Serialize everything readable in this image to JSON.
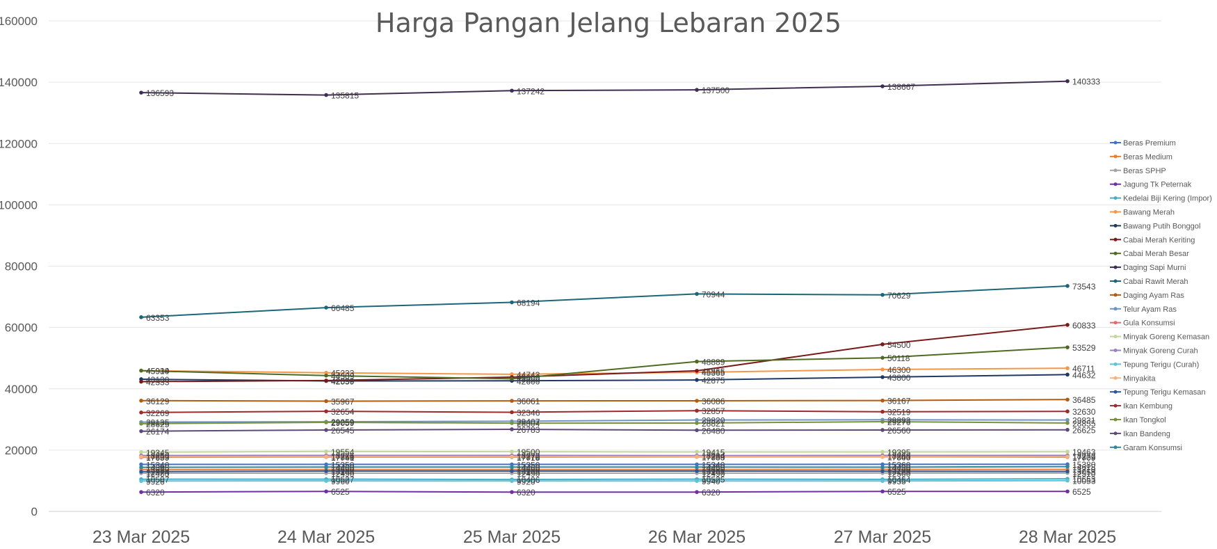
{
  "chart_data": {
    "type": "line",
    "title": "Harga Pangan Jelang Lebaran 2025",
    "xlabel": "",
    "ylabel": "",
    "categories": [
      "23 Mar 2025",
      "24 Mar 2025",
      "25 Mar 2025",
      "26 Mar 2025",
      "27 Mar 2025",
      "28 Mar 2025"
    ],
    "ylim": [
      0,
      160000
    ],
    "yticks": [
      0,
      20000,
      40000,
      60000,
      80000,
      100000,
      120000,
      140000,
      160000
    ],
    "grid": true,
    "legend_position": "right",
    "series": [
      {
        "name": "Beras Premium",
        "color": "#4472C4",
        "values": [
          15340,
          15350,
          15350,
          15340,
          15360,
          15380
        ]
      },
      {
        "name": "Beras Medium",
        "color": "#ED7D31",
        "values": [
          13680,
          13690,
          13690,
          13680,
          13700,
          13710
        ]
      },
      {
        "name": "Beras SPHP",
        "color": "#A5A5A5",
        "values": [
          12480,
          12490,
          12490,
          12490,
          12500,
          12510
        ]
      },
      {
        "name": "Jagung Tk Peternak",
        "color": "#7030A0",
        "values": [
          6320,
          6525,
          6320,
          6320,
          6525,
          6525
        ]
      },
      {
        "name": "Kedelai Biji Kering (Impor)",
        "color": "#4BACC6",
        "values": [
          10507,
          10527,
          10406,
          10525,
          10454,
          10653
        ]
      },
      {
        "name": "Bawang Merah",
        "color": "#F79646",
        "values": [
          45939,
          45233,
          44743,
          45365,
          46300,
          46711
        ]
      },
      {
        "name": "Bawang Putih Bonggol",
        "color": "#1F3864",
        "values": [
          43130,
          42559,
          42600,
          42875,
          43800,
          44632
        ]
      },
      {
        "name": "Cabai Merah Keriting",
        "color": "#7B1818",
        "values": [
          42333,
          42690,
          43800,
          45865,
          54500,
          60833
        ]
      },
      {
        "name": "Cabai Merah Besar",
        "color": "#4E6B22",
        "values": [
          45914,
          44309,
          43250,
          48889,
          50118,
          53529
        ]
      },
      {
        "name": "Daging Sapi Murni",
        "color": "#3F2D52",
        "values": [
          136593,
          135815,
          137242,
          137500,
          138667,
          140333
        ]
      },
      {
        "name": "Cabai Rawit Merah",
        "color": "#1B6678",
        "values": [
          63353,
          66485,
          68194,
          70944,
          70629,
          73543
        ]
      },
      {
        "name": "Daging Ayam Ras",
        "color": "#B35B0F",
        "values": [
          36129,
          35967,
          36061,
          36086,
          36167,
          36485
        ]
      },
      {
        "name": "Telur Ayam Ras",
        "color": "#6E93C9",
        "values": [
          29135,
          29259,
          29407,
          29820,
          29893,
          29831
        ]
      },
      {
        "name": "Gula Konsumsi",
        "color": "#E26C6C",
        "values": [
          17659,
          17741,
          17718,
          17789,
          17803,
          17709
        ]
      },
      {
        "name": "Minyak Goreng Kemasan",
        "color": "#C3D69B",
        "values": [
          19345,
          19554,
          19500,
          19415,
          19395,
          19463
        ]
      },
      {
        "name": "Minyak Goreng Curah",
        "color": "#9B7FC1",
        "values": [
          18250,
          18276,
          18272,
          18234,
          18268,
          18272
        ]
      },
      {
        "name": "Tepung Terigu (Curah)",
        "color": "#5BC4D6",
        "values": [
          9926,
          9960,
          9920,
          9940,
          9935,
          10053
        ]
      },
      {
        "name": "Minyakita",
        "color": "#FAB278",
        "values": [
          17833,
          17858,
          17870,
          17858,
          17840,
          17839
        ]
      },
      {
        "name": "Tepung Terigu Kemasan",
        "color": "#2F5597",
        "values": [
          12974,
          13168,
          13168,
          13161,
          13129,
          13053
        ]
      },
      {
        "name": "Ikan Kembung",
        "color": "#9E2A2A",
        "values": [
          32269,
          32654,
          32346,
          32857,
          32519,
          32630
        ]
      },
      {
        "name": "Ikan Tongkol",
        "color": "#77933C",
        "values": [
          28625,
          29059,
          28804,
          28821,
          29276,
          28855
        ]
      },
      {
        "name": "Ikan Bandeng",
        "color": "#5F497A",
        "values": [
          26174,
          26545,
          26783,
          26480,
          26560,
          26625
        ]
      },
      {
        "name": "Garam Konsumsi",
        "color": "#31859C",
        "values": [
          14395,
          14460,
          14460,
          14450,
          14430,
          14618
        ]
      }
    ]
  }
}
